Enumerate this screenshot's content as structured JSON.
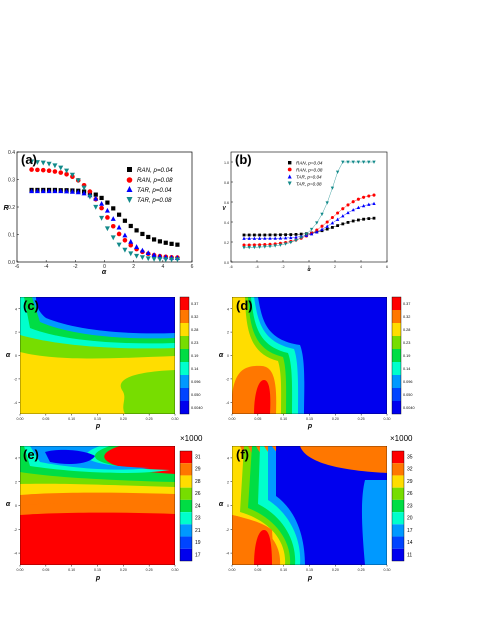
{
  "chart_data": [
    {
      "panel": "(a)",
      "type": "scatter",
      "xlabel": "α",
      "ylabel": "R",
      "xlim": [
        -6,
        6
      ],
      "ylim": [
        0,
        0.4
      ],
      "xticks": [
        "-6",
        "-4",
        "-2",
        "0",
        "2",
        "4",
        "6"
      ],
      "yticks": [
        "0.0",
        "0.1",
        "0.2",
        "0.3",
        "0.4"
      ],
      "series": [
        {
          "name": "RAN, p=0.04",
          "marker": "square",
          "color": "#000000",
          "x": [
            -5,
            -4.6,
            -4.2,
            -3.8,
            -3.4,
            -3,
            -2.6,
            -2.2,
            -1.8,
            -1.4,
            -1,
            -0.6,
            -0.2,
            0.2,
            0.6,
            1,
            1.4,
            1.8,
            2.2,
            2.6,
            3,
            3.4,
            3.8,
            4.2,
            4.6,
            5
          ],
          "values": [
            0.262,
            0.262,
            0.262,
            0.262,
            0.262,
            0.261,
            0.261,
            0.26,
            0.259,
            0.256,
            0.252,
            0.245,
            0.233,
            0.216,
            0.195,
            0.172,
            0.15,
            0.131,
            0.115,
            0.102,
            0.091,
            0.082,
            0.075,
            0.07,
            0.066,
            0.063
          ]
        },
        {
          "name": "RAN, p=0.08",
          "marker": "circle",
          "color": "#ff0000",
          "x": [
            -5,
            -4.6,
            -4.2,
            -3.8,
            -3.4,
            -3,
            -2.6,
            -2.2,
            -1.8,
            -1.4,
            -1,
            -0.6,
            -0.2,
            0.2,
            0.6,
            1,
            1.4,
            1.8,
            2.2,
            2.6,
            3,
            3.4,
            3.8,
            4.2,
            4.6,
            5
          ],
          "values": [
            0.336,
            0.335,
            0.334,
            0.332,
            0.329,
            0.325,
            0.319,
            0.31,
            0.297,
            0.279,
            0.256,
            0.228,
            0.196,
            0.162,
            0.13,
            0.102,
            0.079,
            0.061,
            0.047,
            0.037,
            0.03,
            0.025,
            0.021,
            0.019,
            0.017,
            0.016
          ]
        },
        {
          "name": "TAR, p=0.04",
          "marker": "triangle-up",
          "color": "#0000ff",
          "x": [
            -5,
            -4.6,
            -4.2,
            -3.8,
            -3.4,
            -3,
            -2.6,
            -2.2,
            -1.8,
            -1.4,
            -1,
            -0.6,
            -0.2,
            0.2,
            0.6,
            1,
            1.4,
            1.8,
            2.2,
            2.6,
            3,
            3.4,
            3.8,
            4.2,
            4.6,
            5
          ],
          "values": [
            0.258,
            0.258,
            0.258,
            0.258,
            0.258,
            0.258,
            0.257,
            0.256,
            0.254,
            0.25,
            0.243,
            0.231,
            0.212,
            0.187,
            0.157,
            0.126,
            0.097,
            0.074,
            0.055,
            0.042,
            0.033,
            0.026,
            0.021,
            0.018,
            0.016,
            0.015
          ]
        },
        {
          "name": "TAR, p=0.08",
          "marker": "triangle-down",
          "color": "#138a8a",
          "x": [
            -5,
            -4.6,
            -4.2,
            -3.8,
            -3.4,
            -3,
            -2.6,
            -2.2,
            -1.8,
            -1.4,
            -1,
            -0.6,
            -0.2,
            0.2,
            0.6,
            1,
            1.4,
            1.8,
            2.2,
            2.6,
            3,
            3.4,
            3.8,
            4.2,
            4.6,
            5
          ],
          "values": [
            0.365,
            0.363,
            0.361,
            0.357,
            0.351,
            0.343,
            0.332,
            0.317,
            0.297,
            0.27,
            0.237,
            0.2,
            0.16,
            0.122,
            0.089,
            0.063,
            0.044,
            0.031,
            0.022,
            0.017,
            0.013,
            0.011,
            0.01,
            0.009,
            0.009,
            0.009
          ]
        }
      ]
    },
    {
      "panel": "(b)",
      "type": "scatter",
      "xlabel": "α",
      "ylabel": "V",
      "xlim": [
        -6,
        6
      ],
      "ylim": [
        0,
        1.1
      ],
      "xticks": [
        "-6",
        "-4",
        "-2",
        "0",
        "2",
        "4",
        "6"
      ],
      "yticks": [
        "0.0",
        "0.2",
        "0.4",
        "0.6",
        "0.8",
        "1.0"
      ],
      "series": [
        {
          "name": "RAN, p=0.04",
          "marker": "square",
          "color": "#000000",
          "x": [
            -5,
            -4.6,
            -4.2,
            -3.8,
            -3.4,
            -3,
            -2.6,
            -2.2,
            -1.8,
            -1.4,
            -1,
            -0.6,
            -0.2,
            0.2,
            0.6,
            1,
            1.4,
            1.8,
            2.2,
            2.6,
            3,
            3.4,
            3.8,
            4.2,
            4.6,
            5
          ],
          "values": [
            0.27,
            0.27,
            0.27,
            0.27,
            0.27,
            0.271,
            0.271,
            0.272,
            0.273,
            0.274,
            0.276,
            0.279,
            0.283,
            0.29,
            0.3,
            0.313,
            0.329,
            0.346,
            0.364,
            0.381,
            0.396,
            0.41,
            0.42,
            0.428,
            0.434,
            0.438
          ]
        },
        {
          "name": "RAN, p=0.08",
          "marker": "circle",
          "color": "#ff0000",
          "x": [
            -5,
            -4.6,
            -4.2,
            -3.8,
            -3.4,
            -3,
            -2.6,
            -2.2,
            -1.8,
            -1.4,
            -1,
            -0.6,
            -0.2,
            0.2,
            0.6,
            1,
            1.4,
            1.8,
            2.2,
            2.6,
            3,
            3.4,
            3.8,
            4.2,
            4.6,
            5
          ],
          "values": [
            0.17,
            0.17,
            0.171,
            0.172,
            0.174,
            0.177,
            0.181,
            0.187,
            0.195,
            0.206,
            0.22,
            0.238,
            0.26,
            0.287,
            0.32,
            0.358,
            0.4,
            0.445,
            0.49,
            0.533,
            0.571,
            0.603,
            0.628,
            0.647,
            0.66,
            0.669
          ]
        },
        {
          "name": "TAR, p=0.04",
          "marker": "triangle-up",
          "color": "#0000ff",
          "x": [
            -5,
            -4.6,
            -4.2,
            -3.8,
            -3.4,
            -3,
            -2.6,
            -2.2,
            -1.8,
            -1.4,
            -1,
            -0.6,
            -0.2,
            0.2,
            0.6,
            1,
            1.4,
            1.8,
            2.2,
            2.6,
            3,
            3.4,
            3.8,
            4.2,
            4.6,
            5
          ],
          "values": [
            0.235,
            0.235,
            0.235,
            0.235,
            0.236,
            0.236,
            0.237,
            0.238,
            0.24,
            0.243,
            0.248,
            0.255,
            0.265,
            0.28,
            0.3,
            0.326,
            0.357,
            0.39,
            0.425,
            0.46,
            0.493,
            0.521,
            0.544,
            0.562,
            0.575,
            0.584
          ]
        },
        {
          "name": "TAR, p=0.08",
          "marker": "triangle-down",
          "color": "#138a8a",
          "x": [
            -5,
            -4.6,
            -4.2,
            -3.8,
            -3.4,
            -3,
            -2.6,
            -2.2,
            -1.8,
            -1.4,
            -1,
            -0.6,
            -0.2,
            0.2,
            0.6,
            1,
            1.4,
            1.8,
            2.2,
            2.6,
            3,
            3.4,
            3.8,
            4.2,
            4.6,
            5
          ],
          "values": [
            0.145,
            0.146,
            0.147,
            0.149,
            0.152,
            0.156,
            0.162,
            0.17,
            0.181,
            0.196,
            0.216,
            0.243,
            0.279,
            0.327,
            0.392,
            0.478,
            0.592,
            0.74,
            0.9,
            1.0,
            1.0,
            1.0,
            1.0,
            1.0,
            1.0,
            1.0
          ]
        }
      ]
    },
    {
      "panel": "(c)",
      "type": "heatmap",
      "xlabel": "p",
      "ylabel": "α",
      "xticks": [
        "0.00",
        "0.05",
        "0.10",
        "0.15",
        "0.20",
        "0.25",
        "0.30"
      ],
      "yticks": [
        "4",
        "2",
        "0",
        "-2",
        "-4"
      ],
      "colorbar_multiplier": "",
      "colorbar_levels": [
        "0.37",
        "0.32",
        "0.28",
        "0.23",
        "0.19",
        "0.14",
        "0.096",
        "0.050",
        "0.0040"
      ],
      "colorbar_colors": [
        "#ff0000",
        "#ff7700",
        "#ffdd00",
        "#77dd00",
        "#00dd44",
        "#00ffcc",
        "#0099ff",
        "#0044ff",
        "#0000ee"
      ]
    },
    {
      "panel": "(d)",
      "type": "heatmap",
      "xlabel": "p",
      "ylabel": "α",
      "xticks": [
        "0.00",
        "0.05",
        "0.10",
        "0.15",
        "0.20",
        "0.25",
        "0.30"
      ],
      "yticks": [
        "4",
        "2",
        "0",
        "-2",
        "-4"
      ],
      "colorbar_multiplier": "",
      "colorbar_levels": [
        "0.37",
        "0.32",
        "0.28",
        "0.23",
        "0.19",
        "0.14",
        "0.096",
        "0.050",
        "0.0040"
      ],
      "colorbar_colors": [
        "#ff0000",
        "#ff7700",
        "#ffdd00",
        "#77dd00",
        "#00dd44",
        "#00ffcc",
        "#0099ff",
        "#0044ff",
        "#0000ee"
      ]
    },
    {
      "panel": "(e)",
      "type": "heatmap",
      "xlabel": "p",
      "ylabel": "α",
      "xticks": [
        "0.00",
        "0.05",
        "0.10",
        "0.15",
        "0.20",
        "0.25",
        "0.30"
      ],
      "yticks": [
        "4",
        "2",
        "0",
        "-2",
        "-4"
      ],
      "colorbar_multiplier": "×1000",
      "colorbar_levels": [
        "31",
        "29",
        "28",
        "26",
        "24",
        "23",
        "21",
        "19",
        "17"
      ],
      "colorbar_colors": [
        "#ff0000",
        "#ff7700",
        "#ffdd00",
        "#77dd00",
        "#00dd44",
        "#00ffcc",
        "#0099ff",
        "#0044ff",
        "#0000ee"
      ]
    },
    {
      "panel": "(f)",
      "type": "heatmap",
      "xlabel": "p",
      "ylabel": "α",
      "xticks": [
        "0.00",
        "0.05",
        "0.10",
        "0.15",
        "0.20",
        "0.25",
        "0.30"
      ],
      "yticks": [
        "4",
        "2",
        "0",
        "-2",
        "-4"
      ],
      "colorbar_multiplier": "×1000",
      "colorbar_levels": [
        "35",
        "32",
        "29",
        "26",
        "23",
        "20",
        "17",
        "14",
        "11"
      ],
      "colorbar_colors": [
        "#ff0000",
        "#ff7700",
        "#ffdd00",
        "#77dd00",
        "#00dd44",
        "#00ffcc",
        "#0099ff",
        "#0044ff",
        "#0000ee"
      ]
    }
  ]
}
